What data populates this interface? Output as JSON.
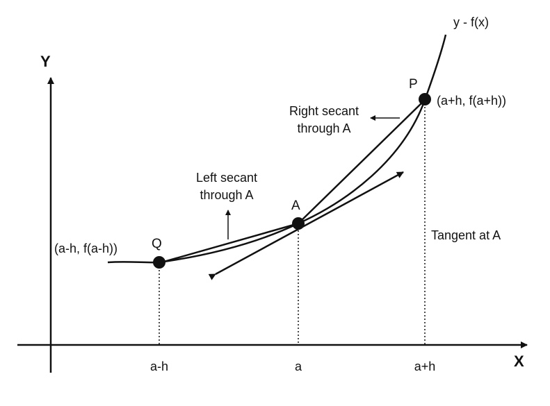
{
  "axes": {
    "y_label": "Y",
    "x_label": "X"
  },
  "curve": {
    "label": "y - f(x)"
  },
  "points": {
    "p": {
      "name": "P",
      "coords": "(a+h, f(a+h))"
    },
    "a": {
      "name": "A"
    },
    "q": {
      "name": "Q",
      "coords": "(a-h, f(a-h))"
    }
  },
  "annotations": {
    "right_secant": [
      "Right secant",
      "through A"
    ],
    "left_secant": [
      "Left secant",
      "through A"
    ],
    "tangent": "Tangent at A"
  },
  "ticks": {
    "left": "a-h",
    "center": "a",
    "right": "a+h"
  },
  "colors": {
    "ink": "#111111",
    "background": "#ffffff"
  }
}
